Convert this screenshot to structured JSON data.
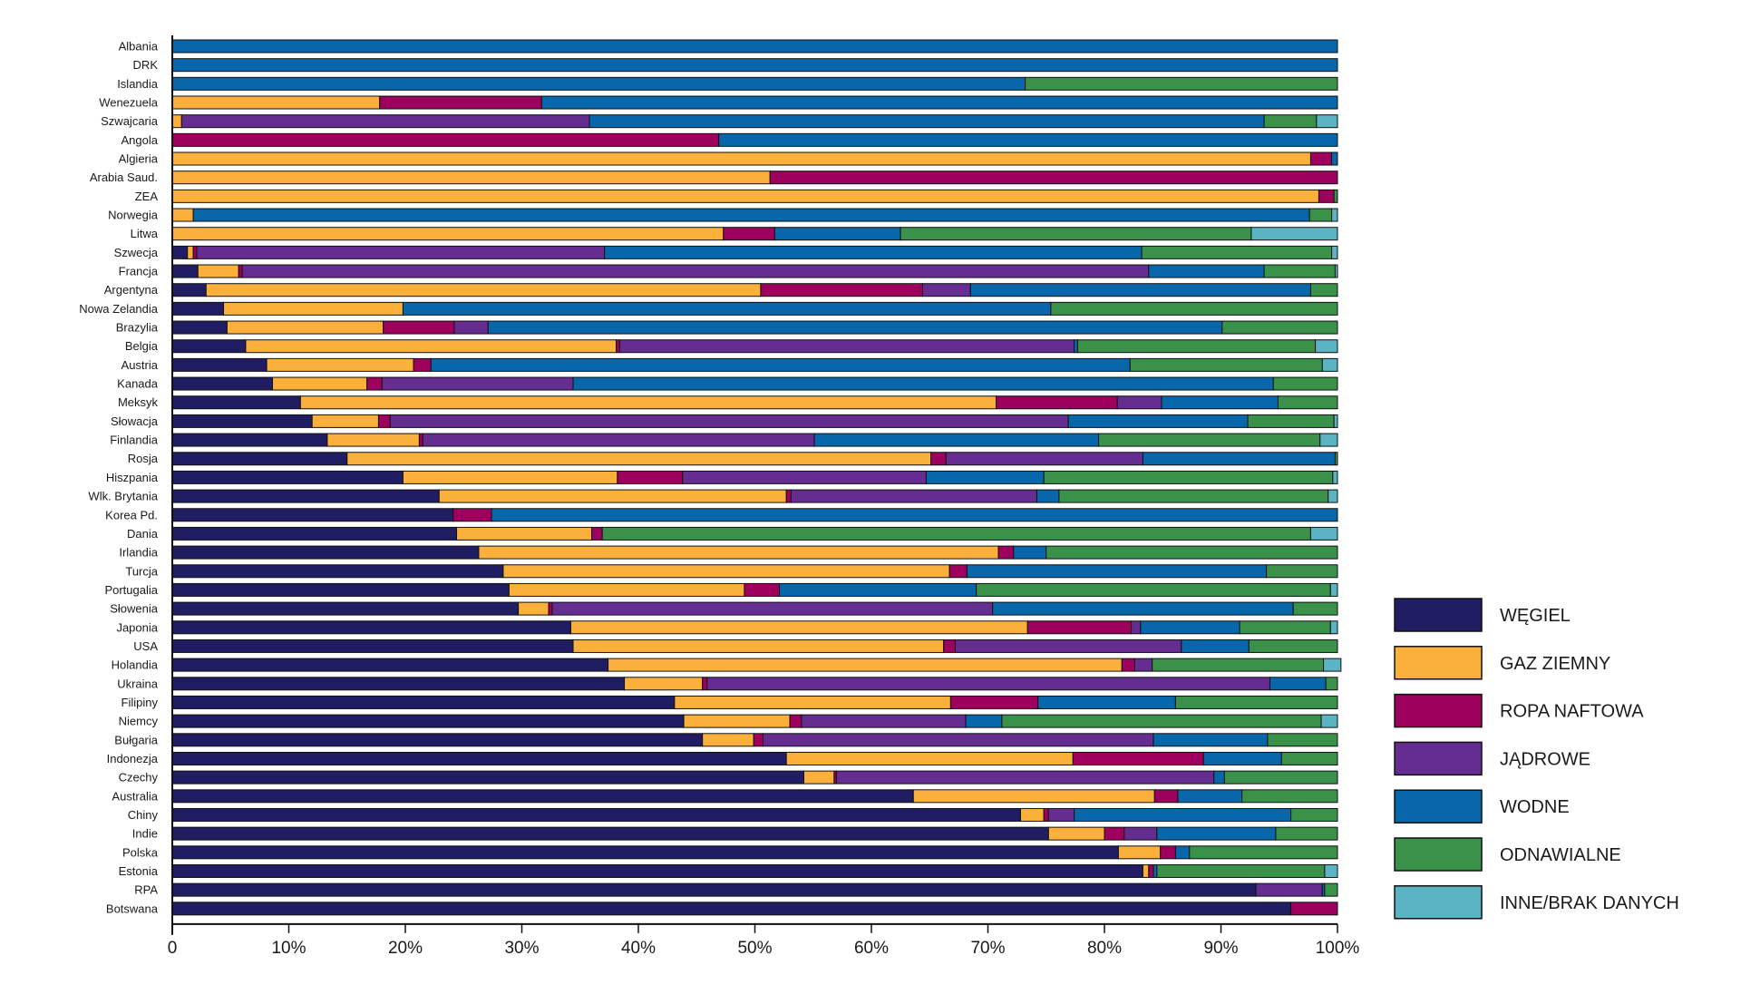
{
  "chart_data": {
    "type": "bar",
    "orientation": "horizontal",
    "stacked": true,
    "normalized": true,
    "title": "",
    "xlabel": "",
    "ylabel": "",
    "xlim": [
      0,
      100
    ],
    "grid": false,
    "legend_position": "bottom-right",
    "x_ticks": [
      "0",
      "10%",
      "20%",
      "30%",
      "40%",
      "50%",
      "60%",
      "70%",
      "80%",
      "90%",
      "100%"
    ],
    "series": [
      {
        "name": "WĘGIEL",
        "color": "#201d63"
      },
      {
        "name": "GAZ ZIEMNY",
        "color": "#fbb03b"
      },
      {
        "name": "ROPA NAFTOWA",
        "color": "#9e005d"
      },
      {
        "name": "JĄDROWE",
        "color": "#662d91"
      },
      {
        "name": "WODNE",
        "color": "#0867ab"
      },
      {
        "name": "ODNAWIALNE",
        "color": "#39914a"
      },
      {
        "name": "INNE/BRAK DANYCH",
        "color": "#5ab4c4"
      }
    ],
    "categories": [
      "Albania",
      "DRK",
      "Islandia",
      "Wenezuela",
      "Szwajcaria",
      "Angola",
      "Algieria",
      "Arabia Saud.",
      "ZEA",
      "Norwegia",
      "Litwa",
      "Szwecja",
      "Francja",
      "Argentyna",
      "Nowa Zelandia",
      "Brazylia",
      "Belgia",
      "Austria",
      "Kanada",
      "Meksyk",
      "Słowacja",
      "Finlandia",
      "Rosja",
      "Hiszpania",
      "Wlk. Brytania",
      "Korea Pd.",
      "Dania",
      "Irlandia",
      "Turcja",
      "Portugalia",
      "Słowenia",
      "Japonia",
      "USA",
      "Holandia",
      "Ukraina",
      "Filipiny",
      "Niemcy",
      "Bułgaria",
      "Indonezja",
      "Czechy",
      "Australia",
      "Chiny",
      "Indie",
      "Polska",
      "Estonia",
      "RPA",
      "Botswana"
    ],
    "values": [
      [
        0,
        0,
        0,
        0,
        100,
        0,
        0
      ],
      [
        0,
        0,
        0,
        0,
        100,
        0,
        0
      ],
      [
        0,
        0,
        0,
        0,
        73.2,
        26.8,
        0
      ],
      [
        0,
        17.8,
        13.9,
        0,
        68.3,
        0,
        0
      ],
      [
        0,
        0.8,
        0,
        35.0,
        57.9,
        4.5,
        1.8
      ],
      [
        0,
        0,
        46.9,
        0,
        53.1,
        0,
        0
      ],
      [
        0,
        97.7,
        1.8,
        0,
        0.5,
        0,
        0
      ],
      [
        0,
        51.3,
        48.7,
        0,
        0,
        0,
        0
      ],
      [
        0,
        98.4,
        1.3,
        0,
        0,
        0.3,
        0
      ],
      [
        0,
        1.8,
        0,
        0,
        95.8,
        1.9,
        0.5
      ],
      [
        0,
        47.3,
        4.4,
        0,
        10.8,
        30.1,
        7.4
      ],
      [
        1.3,
        0.5,
        0.3,
        35.0,
        46.1,
        16.3,
        0.5
      ],
      [
        2.2,
        3.5,
        0.3,
        77.8,
        9.9,
        6.1,
        0.2
      ],
      [
        2.9,
        47.6,
        13.9,
        4.1,
        29.2,
        2.3,
        0
      ],
      [
        4.4,
        15.4,
        0,
        0,
        55.6,
        24.6,
        0
      ],
      [
        4.7,
        13.4,
        6.1,
        2.9,
        63.0,
        9.9,
        0
      ],
      [
        6.3,
        31.8,
        0.3,
        39.0,
        0.3,
        20.4,
        1.9
      ],
      [
        8.1,
        12.6,
        1.5,
        0,
        60.0,
        16.5,
        1.3
      ],
      [
        8.6,
        8.1,
        1.3,
        16.4,
        60.1,
        5.5,
        0
      ],
      [
        11.0,
        59.7,
        10.4,
        3.8,
        10.0,
        5.1,
        0
      ],
      [
        12.0,
        5.7,
        1.0,
        58.2,
        15.4,
        7.4,
        0.3
      ],
      [
        13.3,
        7.9,
        0.3,
        33.6,
        24.4,
        19.0,
        1.5
      ],
      [
        15.0,
        50.1,
        1.3,
        16.9,
        16.5,
        0.2,
        0
      ],
      [
        19.8,
        18.4,
        5.6,
        20.9,
        10.1,
        24.8,
        0.4
      ],
      [
        22.9,
        29.8,
        0.4,
        21.1,
        1.9,
        23.1,
        0.8
      ],
      [
        24.1,
        0,
        3.3,
        0,
        72.6,
        0,
        0
      ],
      [
        24.4,
        11.6,
        0.9,
        0,
        0,
        60.8,
        2.3
      ],
      [
        26.3,
        44.6,
        1.3,
        0,
        2.8,
        25.0,
        0
      ],
      [
        28.4,
        38.3,
        1.5,
        0,
        25.7,
        6.1,
        0
      ],
      [
        28.9,
        20.2,
        3.0,
        0,
        16.9,
        30.4,
        0.6
      ],
      [
        29.7,
        2.6,
        0.3,
        37.8,
        25.8,
        3.8,
        0
      ],
      [
        34.2,
        39.2,
        8.9,
        0.8,
        8.5,
        7.8,
        0.6
      ],
      [
        34.4,
        31.8,
        1.0,
        19.4,
        5.8,
        7.6,
        0
      ],
      [
        37.4,
        44.1,
        1.1,
        1.5,
        0,
        14.7,
        1.5
      ],
      [
        38.8,
        6.7,
        0.4,
        48.3,
        4.8,
        1.0,
        0
      ],
      [
        43.1,
        23.7,
        7.5,
        0,
        11.8,
        13.9,
        0
      ],
      [
        43.9,
        9.1,
        1.0,
        14.1,
        3.1,
        27.4,
        1.4
      ],
      [
        45.5,
        4.4,
        0.8,
        33.5,
        9.8,
        6.0,
        0
      ],
      [
        52.7,
        24.6,
        11.2,
        0,
        6.7,
        4.8,
        0
      ],
      [
        54.2,
        2.6,
        0.2,
        32.4,
        0.9,
        9.7,
        0
      ],
      [
        63.6,
        20.7,
        2.0,
        0,
        5.5,
        8.2,
        0
      ],
      [
        72.8,
        2.0,
        0.4,
        2.2,
        18.6,
        4.0,
        0
      ],
      [
        75.2,
        4.8,
        1.7,
        2.8,
        10.2,
        5.3,
        0
      ],
      [
        81.2,
        3.6,
        1.3,
        0,
        1.2,
        12.7,
        0
      ],
      [
        83.3,
        0.5,
        0.4,
        0,
        0.3,
        14.4,
        1.1
      ],
      [
        93.0,
        0,
        0,
        5.7,
        0.2,
        1.1,
        0
      ],
      [
        96.0,
        0,
        4.0,
        0,
        0,
        0,
        0
      ]
    ]
  }
}
